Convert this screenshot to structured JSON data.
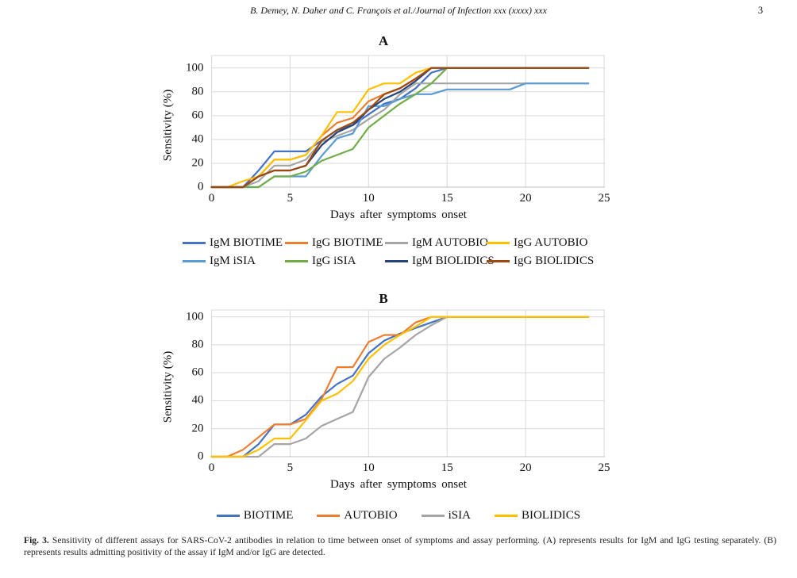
{
  "header": {
    "running_title": "B. Demey, N. Daher and C. François et al./Journal of Infection xxx (xxxx) xxx",
    "page_number": "3"
  },
  "figure_caption": {
    "label": "Fig. 3.",
    "text": " Sensitivity of different assays for SARS-CoV-2 antibodies in relation to time between onset of symptoms and assay performing. (A) represents results for IgM and IgG testing separately. (B) represents results admitting positivity of the assay if IgM and/or IgG are detected."
  },
  "style_colors": {
    "gridline": "#d9d9d9",
    "axis_line": "#bfbfbf"
  },
  "chart_data": [
    {
      "type": "line",
      "id": "A",
      "title": "A",
      "xlabel": "Days after symptoms onset",
      "ylabel": "Sensitivity (%)",
      "x_ticks": [
        0,
        5,
        10,
        15,
        20,
        25
      ],
      "y_ticks": [
        0,
        20,
        40,
        60,
        80,
        100
      ],
      "xlim": [
        0,
        25
      ],
      "ylim": [
        0,
        100
      ],
      "grid": true,
      "legend_position": "bottom",
      "x": [
        0,
        1,
        2,
        3,
        4,
        5,
        6,
        7,
        8,
        9,
        10,
        11,
        12,
        13,
        14,
        15,
        16,
        17,
        18,
        19,
        20,
        24
      ],
      "series": [
        {
          "name": "IgM BIOTIME",
          "color": "#4472C4",
          "values": [
            0,
            0,
            0,
            14,
            30,
            30,
            30,
            39,
            48,
            52,
            61,
            70,
            74,
            83,
            96,
            100,
            100,
            100,
            100,
            100,
            100,
            100
          ]
        },
        {
          "name": "IgG BIOTIME",
          "color": "#ED7D31",
          "values": [
            0,
            0,
            0,
            9,
            23,
            23,
            27,
            43,
            54,
            58,
            72,
            78,
            83,
            91,
            100,
            100,
            100,
            100,
            100,
            100,
            100,
            100
          ]
        },
        {
          "name": "IgM AUTOBIO",
          "color": "#A5A5A5",
          "values": [
            0,
            0,
            0,
            5,
            18,
            18,
            23,
            38,
            43,
            48,
            57,
            65,
            78,
            87,
            87,
            87,
            87,
            87,
            87,
            87,
            87,
            87
          ]
        },
        {
          "name": "IgG AUTOBIO",
          "color": "#FFC000",
          "values": [
            0,
            0,
            5,
            9,
            23,
            23,
            27,
            43,
            63,
            63,
            82,
            87,
            87,
            96,
            100,
            100,
            100,
            100,
            100,
            100,
            100,
            100
          ]
        },
        {
          "name": "IgM iSIA",
          "color": "#5B9BD5",
          "values": [
            0,
            0,
            0,
            0,
            9,
            9,
            9,
            26,
            41,
            45,
            68,
            68,
            74,
            78,
            78,
            82,
            82,
            82,
            82,
            82,
            87,
            87
          ]
        },
        {
          "name": "IgG iSIA",
          "color": "#70AD47",
          "values": [
            0,
            0,
            0,
            0,
            9,
            9,
            13,
            22,
            27,
            32,
            50,
            60,
            70,
            78,
            87,
            100,
            100,
            100,
            100,
            100,
            100,
            100
          ]
        },
        {
          "name": "IgM BIOLIDICS",
          "color": "#264478",
          "values": [
            0,
            0,
            0,
            9,
            14,
            14,
            18,
            35,
            46,
            52,
            65,
            74,
            80,
            89,
            100,
            100,
            100,
            100,
            100,
            100,
            100,
            100
          ]
        },
        {
          "name": "IgG BIOLIDICS",
          "color": "#9E480E",
          "values": [
            0,
            0,
            0,
            9,
            14,
            14,
            18,
            39,
            48,
            54,
            65,
            78,
            83,
            91,
            100,
            100,
            100,
            100,
            100,
            100,
            100,
            100
          ]
        }
      ]
    },
    {
      "type": "line",
      "id": "B",
      "title": "B",
      "xlabel": "Days after symptoms onset",
      "ylabel": "Sensitivity (%)",
      "x_ticks": [
        0,
        5,
        10,
        15,
        20,
        25
      ],
      "y_ticks": [
        0,
        20,
        40,
        60,
        80,
        100
      ],
      "xlim": [
        0,
        25
      ],
      "ylim": [
        0,
        100
      ],
      "grid": true,
      "legend_position": "bottom",
      "x": [
        0,
        1,
        2,
        3,
        4,
        5,
        6,
        7,
        8,
        9,
        10,
        11,
        12,
        13,
        14,
        15,
        16,
        17,
        18,
        19,
        20,
        24
      ],
      "series": [
        {
          "name": "BIOTIME",
          "color": "#4472C4",
          "values": [
            0,
            0,
            0,
            9,
            23,
            23,
            30,
            43,
            52,
            58,
            74,
            83,
            88,
            92,
            96,
            100,
            100,
            100,
            100,
            100,
            100,
            100
          ]
        },
        {
          "name": "AUTOBIO",
          "color": "#ED7D31",
          "values": [
            0,
            0,
            5,
            14,
            23,
            23,
            27,
            41,
            64,
            64,
            82,
            87,
            87,
            96,
            100,
            100,
            100,
            100,
            100,
            100,
            100,
            100
          ]
        },
        {
          "name": "iSIA",
          "color": "#A5A5A5",
          "values": [
            0,
            0,
            0,
            0,
            9,
            9,
            13,
            22,
            27,
            32,
            57,
            70,
            78,
            87,
            94,
            100,
            100,
            100,
            100,
            100,
            100,
            100
          ]
        },
        {
          "name": "BIOLIDICS",
          "color": "#FFC000",
          "values": [
            0,
            0,
            0,
            5,
            13,
            13,
            26,
            40,
            45,
            54,
            70,
            80,
            87,
            93,
            100,
            100,
            100,
            100,
            100,
            100,
            100,
            100
          ]
        }
      ]
    }
  ]
}
